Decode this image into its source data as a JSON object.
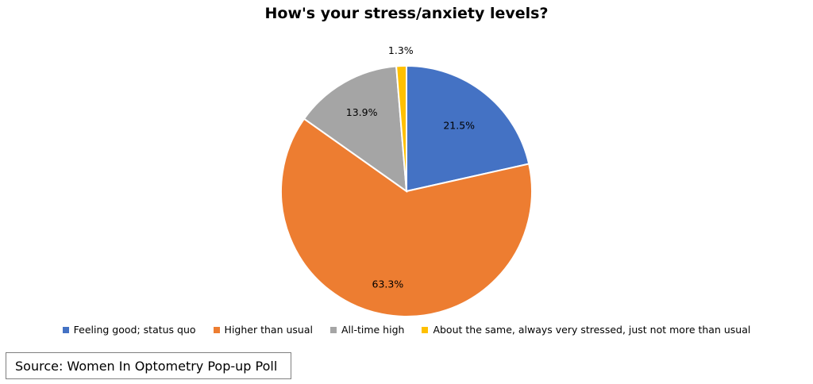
{
  "chart_data": {
    "type": "pie",
    "title": "How's your stress/anxiety levels?",
    "slices": [
      {
        "label": "Feeling good; status quo",
        "value": 21.5,
        "display": "21.5%",
        "color": "#4472C4"
      },
      {
        "label": "Higher than usual",
        "value": 63.3,
        "display": "63.3%",
        "color": "#ED7D31"
      },
      {
        "label": "All-time high",
        "value": 13.9,
        "display": "13.9%",
        "color": "#A5A5A5"
      },
      {
        "label": "About the same, always very stressed, just not more than usual",
        "value": 1.3,
        "display": "1.3%",
        "color": "#FFC000"
      }
    ],
    "legend_position": "bottom"
  },
  "source_text": "Source: Women In Optometry Pop-up Poll"
}
